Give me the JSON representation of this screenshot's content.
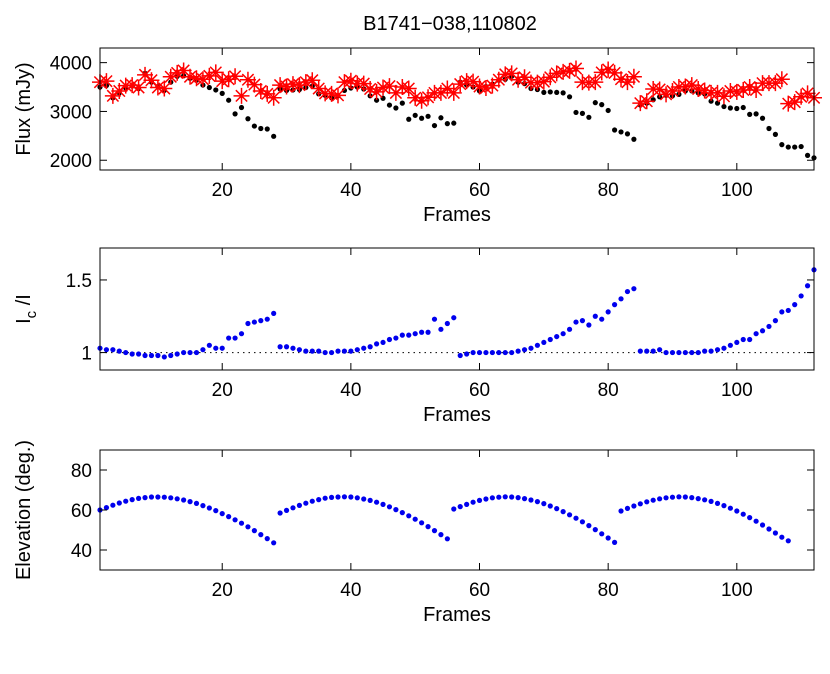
{
  "figure": {
    "title": "B1741−038,110802"
  },
  "colors": {
    "black": "#000000",
    "red": "#ff0000",
    "blue": "#0000ee",
    "axis": "#000000",
    "ref_line": "#000000"
  },
  "chart_data": [
    {
      "type": "scatter",
      "title": "B1741−038,110802",
      "xlabel": "Frames",
      "ylabel": "Flux (mJy)",
      "xlim": [
        1,
        112
      ],
      "ylim": [
        1800,
        4300
      ],
      "x_ticks": [
        20,
        40,
        60,
        80,
        100
      ],
      "x_tick_labels": [
        "20",
        "40",
        "60",
        "80",
        "100"
      ],
      "y_ticks": [
        2000,
        3000,
        4000
      ],
      "y_tick_labels": [
        "2000",
        "3000",
        "4000"
      ],
      "grid": false,
      "x": [
        1,
        2,
        3,
        4,
        5,
        6,
        7,
        8,
        9,
        10,
        11,
        12,
        13,
        14,
        15,
        16,
        17,
        18,
        19,
        20,
        21,
        22,
        23,
        24,
        25,
        26,
        27,
        28,
        29,
        30,
        31,
        32,
        33,
        34,
        35,
        36,
        37,
        38,
        39,
        40,
        41,
        42,
        43,
        44,
        45,
        46,
        47,
        48,
        49,
        50,
        51,
        52,
        53,
        54,
        55,
        56,
        57,
        58,
        59,
        60,
        61,
        62,
        63,
        64,
        65,
        66,
        67,
        68,
        69,
        70,
        71,
        72,
        73,
        74,
        75,
        76,
        77,
        78,
        79,
        80,
        81,
        82,
        83,
        84,
        85,
        86,
        87,
        88,
        89,
        90,
        91,
        92,
        93,
        94,
        95,
        96,
        97,
        98,
        99,
        100,
        101,
        102,
        103,
        104,
        105,
        106,
        107,
        108,
        109,
        110,
        111,
        112
      ],
      "series": [
        {
          "marker": "dot",
          "color": "#000000",
          "values": [
            3500,
            3530,
            3280,
            3380,
            3480,
            3520,
            3470,
            3780,
            3600,
            3510,
            3430,
            3600,
            3720,
            3730,
            3680,
            3640,
            3540,
            3490,
            3440,
            3370,
            3230,
            2950,
            3080,
            2850,
            2700,
            2650,
            2640,
            2490,
            3460,
            3430,
            3440,
            3450,
            3490,
            3520,
            3360,
            3330,
            3280,
            3320,
            3430,
            3480,
            3500,
            3460,
            3320,
            3230,
            3270,
            3130,
            3070,
            3170,
            2840,
            2920,
            2860,
            2900,
            2710,
            2870,
            2750,
            2760,
            3600,
            3540,
            3500,
            3420,
            3510,
            3560,
            3640,
            3660,
            3720,
            3600,
            3570,
            3470,
            3450,
            3390,
            3400,
            3390,
            3380,
            3300,
            2980,
            2960,
            2880,
            3180,
            3140,
            3020,
            2620,
            2580,
            2540,
            2430,
            3130,
            3170,
            3240,
            3300,
            3330,
            3320,
            3350,
            3420,
            3420,
            3380,
            3360,
            3210,
            3170,
            3100,
            3070,
            3060,
            3080,
            2940,
            2950,
            2860,
            2650,
            2530,
            2320,
            2270,
            2270,
            2280,
            2100,
            2050
          ]
        },
        {
          "marker": "asterisk",
          "color": "#ff0000",
          "values": [
            3600,
            3620,
            3320,
            3420,
            3530,
            3540,
            3490,
            3750,
            3640,
            3490,
            3470,
            3710,
            3790,
            3840,
            3710,
            3680,
            3660,
            3730,
            3800,
            3620,
            3660,
            3720,
            3320,
            3650,
            3550,
            3420,
            3360,
            3280,
            3540,
            3510,
            3560,
            3540,
            3600,
            3640,
            3470,
            3370,
            3360,
            3330,
            3600,
            3630,
            3570,
            3570,
            3460,
            3400,
            3490,
            3520,
            3380,
            3500,
            3470,
            3280,
            3220,
            3290,
            3380,
            3380,
            3470,
            3380,
            3560,
            3620,
            3610,
            3510,
            3480,
            3530,
            3650,
            3760,
            3780,
            3650,
            3700,
            3590,
            3590,
            3610,
            3700,
            3780,
            3810,
            3830,
            3880,
            3600,
            3590,
            3600,
            3800,
            3860,
            3790,
            3660,
            3600,
            3710,
            3170,
            3210,
            3460,
            3450,
            3350,
            3420,
            3500,
            3510,
            3540,
            3460,
            3430,
            3380,
            3380,
            3310,
            3420,
            3400,
            3440,
            3500,
            3440,
            3580,
            3580,
            3580,
            3660,
            3160,
            3190,
            3300,
            3370,
            3280
          ]
        }
      ]
    },
    {
      "type": "scatter",
      "xlabel": "Frames",
      "ylabel": "I",
      "ylabel_subscript": "c",
      "ylabel_suffix": " /I",
      "xlim": [
        1,
        112
      ],
      "ylim": [
        0.88,
        1.72
      ],
      "x_ticks": [
        20,
        40,
        60,
        80,
        100
      ],
      "x_tick_labels": [
        "20",
        "40",
        "60",
        "80",
        "100"
      ],
      "y_ticks": [
        1,
        1.5
      ],
      "y_tick_labels": [
        "1",
        "1.5"
      ],
      "grid": false,
      "reference_line": 1,
      "x": [
        1,
        2,
        3,
        4,
        5,
        6,
        7,
        8,
        9,
        10,
        11,
        12,
        13,
        14,
        15,
        16,
        17,
        18,
        19,
        20,
        21,
        22,
        23,
        24,
        25,
        26,
        27,
        28,
        29,
        30,
        31,
        32,
        33,
        34,
        35,
        36,
        37,
        38,
        39,
        40,
        41,
        42,
        43,
        44,
        45,
        46,
        47,
        48,
        49,
        50,
        51,
        52,
        53,
        54,
        55,
        56,
        57,
        58,
        59,
        60,
        61,
        62,
        63,
        64,
        65,
        66,
        67,
        68,
        69,
        70,
        71,
        72,
        73,
        74,
        75,
        76,
        77,
        78,
        79,
        80,
        81,
        82,
        83,
        84,
        85,
        86,
        87,
        88,
        89,
        90,
        91,
        92,
        93,
        94,
        95,
        96,
        97,
        98,
        99,
        100,
        101,
        102,
        103,
        104,
        105,
        106,
        107,
        108,
        109,
        110,
        111,
        112
      ],
      "series": [
        {
          "marker": "dot",
          "color": "#0000ee",
          "values": [
            1.03,
            1.02,
            1.02,
            1.01,
            1.0,
            0.99,
            0.99,
            0.98,
            0.98,
            0.98,
            0.97,
            0.98,
            0.99,
            1.0,
            1.0,
            1.0,
            1.02,
            1.05,
            1.03,
            1.03,
            1.1,
            1.1,
            1.13,
            1.2,
            1.21,
            1.22,
            1.23,
            1.27,
            1.04,
            1.04,
            1.03,
            1.02,
            1.01,
            1.01,
            1.01,
            1.0,
            1.0,
            1.01,
            1.01,
            1.01,
            1.02,
            1.03,
            1.04,
            1.06,
            1.07,
            1.09,
            1.1,
            1.12,
            1.12,
            1.13,
            1.14,
            1.14,
            1.23,
            1.16,
            1.2,
            1.24,
            0.98,
            0.99,
            1.0,
            1.0,
            1.0,
            1.0,
            1.0,
            1.0,
            1.0,
            1.01,
            1.02,
            1.03,
            1.05,
            1.07,
            1.09,
            1.11,
            1.13,
            1.16,
            1.21,
            1.22,
            1.19,
            1.25,
            1.23,
            1.28,
            1.33,
            1.37,
            1.42,
            1.44,
            1.01,
            1.01,
            1.01,
            1.02,
            1.0,
            1.0,
            1.0,
            1.0,
            1.0,
            1.0,
            1.01,
            1.01,
            1.02,
            1.03,
            1.05,
            1.07,
            1.09,
            1.09,
            1.13,
            1.15,
            1.18,
            1.22,
            1.28,
            1.29,
            1.33,
            1.39,
            1.46,
            1.57
          ]
        }
      ]
    },
    {
      "type": "scatter",
      "xlabel": "Frames",
      "ylabel": "Elevation (deg.)",
      "xlim": [
        1,
        112
      ],
      "ylim": [
        30,
        90
      ],
      "x_ticks": [
        20,
        40,
        60,
        80,
        100
      ],
      "x_tick_labels": [
        "20",
        "40",
        "60",
        "80",
        "100"
      ],
      "y_ticks": [
        40,
        60,
        80
      ],
      "y_tick_labels": [
        "40",
        "60",
        "80"
      ],
      "grid": false,
      "x": [
        1,
        2,
        3,
        4,
        5,
        6,
        7,
        8,
        9,
        10,
        11,
        12,
        13,
        14,
        15,
        16,
        17,
        18,
        19,
        20,
        21,
        22,
        23,
        24,
        25,
        26,
        27,
        28,
        29,
        30,
        31,
        32,
        33,
        34,
        35,
        36,
        37,
        38,
        39,
        40,
        41,
        42,
        43,
        44,
        45,
        46,
        47,
        48,
        49,
        50,
        51,
        52,
        53,
        54,
        55,
        56,
        57,
        58,
        59,
        60,
        61,
        62,
        63,
        64,
        65,
        66,
        67,
        68,
        69,
        70,
        71,
        72,
        73,
        74,
        75,
        76,
        77,
        78,
        79,
        80,
        81,
        82,
        83,
        84,
        85,
        86,
        87,
        88,
        89,
        90,
        91,
        92,
        93,
        94,
        95,
        96,
        97,
        98,
        99,
        100,
        101,
        102,
        103,
        104,
        105,
        106,
        107,
        108,
        109,
        110,
        111,
        112
      ],
      "series": [
        {
          "marker": "dot",
          "color": "#0000ee",
          "values": [
            60.0,
            61.2,
            62.4,
            63.5,
            64.4,
            65.2,
            65.8,
            66.2,
            66.5,
            66.5,
            66.4,
            66.1,
            65.6,
            65.0,
            64.2,
            63.3,
            62.2,
            61.0,
            59.7,
            58.2,
            56.7,
            55.1,
            53.4,
            51.6,
            49.7,
            47.7,
            45.7,
            43.6,
            58.5,
            59.8,
            61.1,
            62.3,
            63.4,
            64.4,
            65.2,
            65.9,
            66.3,
            66.5,
            66.6,
            66.5,
            66.1,
            65.5,
            64.8,
            63.9,
            62.8,
            61.6,
            60.2,
            58.7,
            57.1,
            55.4,
            53.6,
            51.7,
            49.7,
            47.7,
            45.6,
            60.5,
            61.7,
            62.8,
            63.9,
            64.8,
            65.5,
            66.1,
            66.4,
            66.6,
            66.5,
            66.2,
            65.7,
            65.0,
            64.2,
            63.2,
            62.0,
            60.7,
            59.2,
            57.6,
            55.9,
            54.1,
            52.2,
            50.2,
            48.1,
            46.0,
            43.8,
            59.5,
            60.8,
            62.0,
            63.1,
            64.1,
            64.9,
            65.6,
            66.1,
            66.4,
            66.6,
            66.5,
            66.2,
            65.7,
            65.1,
            64.3,
            63.3,
            62.2,
            60.9,
            59.5,
            57.9,
            56.2,
            54.4,
            52.5,
            50.5,
            48.5,
            46.4,
            44.6
          ]
        }
      ]
    }
  ]
}
